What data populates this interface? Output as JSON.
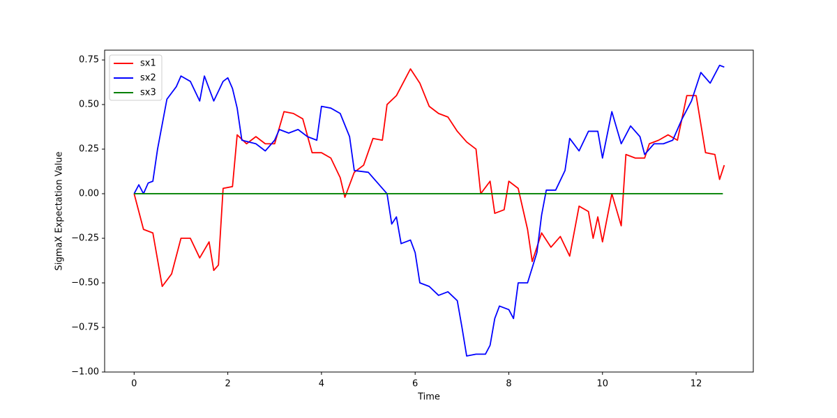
{
  "chart_data": {
    "type": "line",
    "xlabel": "Time",
    "ylabel": "SigmaX Expectation Value",
    "xlim": [
      -0.63,
      13.22
    ],
    "ylim": [
      -1.0,
      0.805
    ],
    "xticks": [
      0,
      2,
      4,
      6,
      8,
      10,
      12
    ],
    "yticks": [
      {
        "value": 0.75,
        "label": "0.75"
      },
      {
        "value": 0.5,
        "label": "0.50"
      },
      {
        "value": 0.25,
        "label": "0.25"
      },
      {
        "value": 0,
        "label": "0.00"
      },
      {
        "value": -0.25,
        "label": "−0.25"
      },
      {
        "value": -0.5,
        "label": "−0.50"
      },
      {
        "value": -0.75,
        "label": "−0.75"
      },
      {
        "value": -1.0,
        "label": "−1.00"
      }
    ],
    "legend": "upper left",
    "series": [
      {
        "name": "sx1",
        "color": "#ff0000",
        "x": [
          0,
          0.2,
          0.4,
          0.6,
          0.8,
          1.0,
          1.2,
          1.4,
          1.6,
          1.7,
          1.8,
          1.9,
          2.1,
          2.2,
          2.4,
          2.6,
          2.8,
          3.0,
          3.2,
          3.4,
          3.6,
          3.8,
          4.0,
          4.2,
          4.4,
          4.5,
          4.7,
          4.9,
          5.1,
          5.3,
          5.4,
          5.6,
          5.8,
          5.9,
          6.1,
          6.3,
          6.5,
          6.7,
          6.9,
          7.1,
          7.3,
          7.4,
          7.6,
          7.7,
          7.9,
          8.0,
          8.2,
          8.4,
          8.5,
          8.7,
          8.9,
          9.1,
          9.3,
          9.5,
          9.7,
          9.8,
          9.9,
          10.0,
          10.2,
          10.4,
          10.5,
          10.7,
          10.9,
          11.0,
          11.2,
          11.4,
          11.6,
          11.8,
          12.0,
          12.2,
          12.4,
          12.5,
          12.6
        ],
        "values": [
          0,
          -0.2,
          -0.22,
          -0.52,
          -0.45,
          -0.25,
          -0.25,
          -0.36,
          -0.27,
          -0.43,
          -0.4,
          0.03,
          0.04,
          0.33,
          0.28,
          0.32,
          0.28,
          0.28,
          0.46,
          0.45,
          0.42,
          0.23,
          0.23,
          0.2,
          0.09,
          -0.02,
          0.12,
          0.16,
          0.31,
          0.3,
          0.5,
          0.55,
          0.65,
          0.7,
          0.62,
          0.49,
          0.45,
          0.43,
          0.35,
          0.29,
          0.25,
          0.0,
          0.07,
          -0.11,
          -0.09,
          0.07,
          0.03,
          -0.2,
          -0.38,
          -0.22,
          -0.3,
          -0.24,
          -0.35,
          -0.07,
          -0.1,
          -0.25,
          -0.13,
          -0.27,
          0.0,
          -0.18,
          0.22,
          0.2,
          0.2,
          0.28,
          0.3,
          0.33,
          0.3,
          0.55,
          0.55,
          0.23,
          0.22,
          0.08,
          0.16
        ]
      },
      {
        "name": "sx2",
        "color": "#0000ff",
        "x": [
          0,
          0.1,
          0.2,
          0.3,
          0.4,
          0.5,
          0.7,
          0.9,
          1.0,
          1.2,
          1.4,
          1.5,
          1.7,
          1.9,
          2.0,
          2.1,
          2.2,
          2.3,
          2.6,
          2.8,
          3.0,
          3.1,
          3.3,
          3.5,
          3.7,
          3.9,
          4.0,
          4.2,
          4.4,
          4.6,
          4.7,
          5.0,
          5.2,
          5.4,
          5.5,
          5.6,
          5.7,
          5.9,
          6.0,
          6.1,
          6.3,
          6.5,
          6.7,
          6.9,
          7.0,
          7.1,
          7.3,
          7.5,
          7.6,
          7.7,
          7.8,
          8.0,
          8.1,
          8.2,
          8.4,
          8.6,
          8.7,
          8.8,
          9.0,
          9.2,
          9.3,
          9.5,
          9.7,
          9.9,
          10.0,
          10.2,
          10.4,
          10.6,
          10.8,
          10.9,
          11.1,
          11.3,
          11.5,
          11.7,
          11.9,
          12.1,
          12.3,
          12.5,
          12.6
        ],
        "values": [
          0,
          0.05,
          0.0,
          0.06,
          0.07,
          0.25,
          0.53,
          0.6,
          0.66,
          0.63,
          0.52,
          0.66,
          0.52,
          0.63,
          0.65,
          0.59,
          0.48,
          0.3,
          0.28,
          0.24,
          0.3,
          0.36,
          0.34,
          0.36,
          0.32,
          0.3,
          0.49,
          0.48,
          0.45,
          0.32,
          0.13,
          0.12,
          0.06,
          0.0,
          -0.17,
          -0.13,
          -0.28,
          -0.26,
          -0.33,
          -0.5,
          -0.52,
          -0.57,
          -0.55,
          -0.6,
          -0.75,
          -0.91,
          -0.9,
          -0.9,
          -0.85,
          -0.7,
          -0.63,
          -0.65,
          -0.7,
          -0.5,
          -0.5,
          -0.33,
          -0.12,
          0.02,
          0.02,
          0.13,
          0.31,
          0.24,
          0.35,
          0.35,
          0.2,
          0.46,
          0.28,
          0.38,
          0.32,
          0.22,
          0.28,
          0.28,
          0.3,
          0.42,
          0.52,
          0.68,
          0.62,
          0.72,
          0.71
        ]
      },
      {
        "name": "sx3",
        "color": "#008000",
        "x": [
          0,
          12.57
        ],
        "values": [
          0,
          0
        ]
      }
    ]
  }
}
